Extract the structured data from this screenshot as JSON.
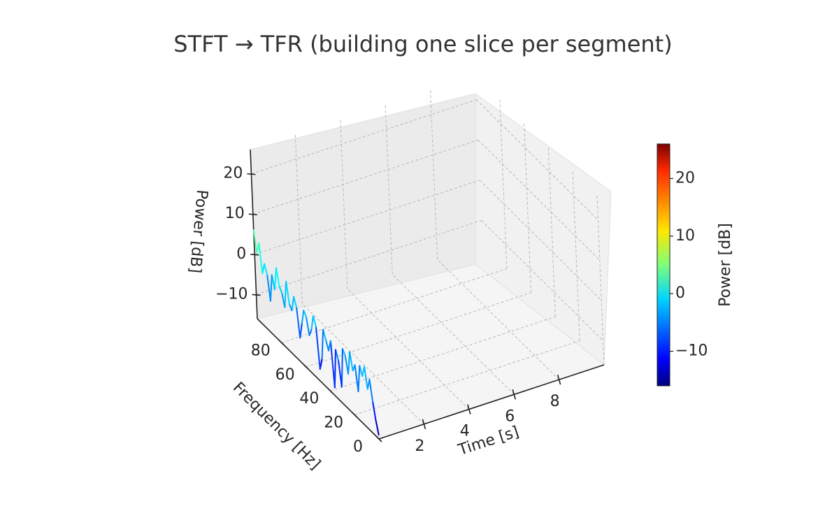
{
  "chart_data": {
    "type": "3d-line",
    "title": "STFT → TFR (building one slice per segment)",
    "xlabel": "Time [s]",
    "ylabel": "Frequency [Hz]",
    "zlabel": "Power [dB]",
    "x_ticks": [
      "2",
      "4",
      "6",
      "8"
    ],
    "y_ticks": [
      "0",
      "20",
      "40",
      "60",
      "80"
    ],
    "z_ticks": [
      "−10",
      "0",
      "10",
      "20"
    ],
    "xlim": [
      0,
      10
    ],
    "ylim": [
      0,
      100
    ],
    "zlim": [
      -16,
      26
    ],
    "grid": true,
    "colormap": "jet",
    "colorbar": {
      "label": "Power [dB]",
      "ticks": [
        "−10",
        "0",
        "10",
        "20"
      ],
      "range": [
        -16,
        26
      ],
      "placement": "right"
    },
    "series": [
      {
        "time": 0,
        "frequency": [
          0,
          2,
          4,
          6,
          8,
          10,
          12,
          14,
          16,
          18,
          20,
          22,
          24,
          26,
          28,
          30,
          32,
          34,
          36,
          38,
          40,
          42,
          44,
          46,
          48,
          50,
          52,
          54,
          56,
          58,
          60,
          62,
          64,
          66,
          68,
          70,
          72,
          74,
          76,
          78,
          80,
          82,
          84,
          86,
          88,
          90,
          92,
          94,
          96,
          98,
          100
        ],
        "power": [
          -15,
          -12,
          -8,
          -3,
          -6,
          -1,
          -4,
          -2,
          -9,
          -3,
          -5,
          -1,
          -7,
          -3,
          -2,
          -12,
          -6,
          -4,
          -14,
          -3,
          -6,
          -4,
          -2,
          -10,
          -13,
          -3,
          -1,
          -5,
          -7,
          -3,
          -2,
          -6,
          -10,
          -3,
          -1,
          -5,
          -4,
          1,
          -6,
          -3,
          -2,
          2,
          -4,
          -1,
          -8,
          -2,
          0,
          -3,
          4,
          1,
          6
        ]
      }
    ]
  }
}
